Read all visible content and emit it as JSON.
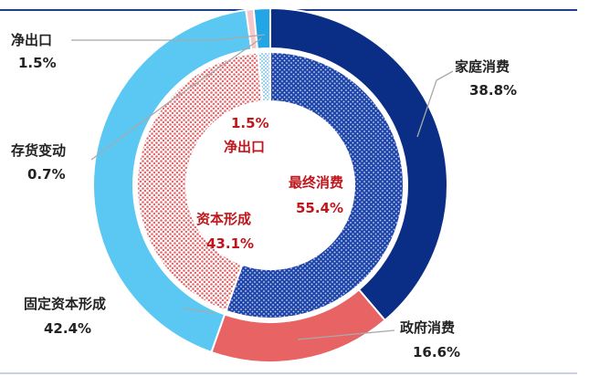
{
  "chart_data": {
    "type": "pie",
    "variant": "nested-donut",
    "colors": {
      "top_rule": "#1f3f8c",
      "household": "#0a2d86",
      "government": "#e86464",
      "fixed_capital": "#5ac8f2",
      "inventory": "#f6c8cc",
      "net_export": "#23a6e6",
      "inner_final_pattern": "#1f45a8",
      "inner_capital_pattern": "#e8676b",
      "inner_net_pattern": "#4fb6ea",
      "outer_label": "#222222",
      "inner_label": "#c0161b",
      "leader": "#a9a9a9"
    },
    "outer": [
      {
        "name": "家庭消费",
        "value": "38.8%",
        "pct": 38.8,
        "color_key": "household"
      },
      {
        "name": "政府消费",
        "value": "16.6%",
        "pct": 16.6,
        "color_key": "government"
      },
      {
        "name": "固定资本形成",
        "value": "42.4%",
        "pct": 42.4,
        "color_key": "fixed_capital"
      },
      {
        "name": "存货变动",
        "value": "0.7%",
        "pct": 0.7,
        "color_key": "inventory"
      },
      {
        "name": "净出口",
        "value": "1.5%",
        "pct": 1.5,
        "color_key": "net_export"
      }
    ],
    "inner": [
      {
        "name": "最终消费",
        "value": "55.4%",
        "pct": 55.4,
        "pattern": "dots-blue"
      },
      {
        "name": "资本形成",
        "value": "43.1%",
        "pct": 43.1,
        "pattern": "dots-red"
      },
      {
        "name": "净出口",
        "value": "1.5%",
        "pct": 1.5,
        "pattern": "dots-lightblue"
      }
    ]
  }
}
